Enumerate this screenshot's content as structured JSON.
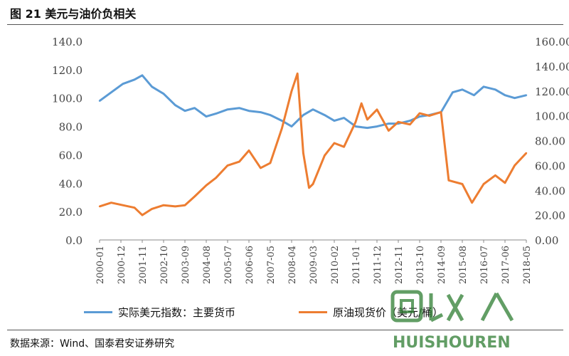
{
  "figure_title": "图 21 美元与油价负相关",
  "source_note": "数据来源：Wind、国泰君安证券研究",
  "watermark": "回收人 HUISHOUREN",
  "colors": {
    "usd": "#5b9bd5",
    "oil": "#ed7d31",
    "axis": "#888888",
    "text": "#444444"
  },
  "chart_data": {
    "type": "line",
    "title": "图 21 美元与油价负相关",
    "x_tick_labels": [
      "2000-01",
      "2000-12",
      "2001-11",
      "2002-10",
      "2003-09",
      "2004-08",
      "2005-07",
      "2006-06",
      "2007-05",
      "2008-04",
      "2009-03",
      "2010-02",
      "2011-01",
      "2011-12",
      "2012-11",
      "2013-10",
      "2014-09",
      "2015-08",
      "2016-07",
      "2017-06",
      "2018-05"
    ],
    "y_left": {
      "range": [
        0,
        140
      ],
      "ticks": [
        "0.0",
        "20.0",
        "40.0",
        "60.0",
        "80.0",
        "100.0",
        "120.0",
        "140.0"
      ]
    },
    "y_right": {
      "range": [
        0,
        160
      ],
      "ticks": [
        "0.00",
        "20.00",
        "40.00",
        "60.00",
        "80.00",
        "100.00",
        "120.00",
        "140.00",
        "160.00"
      ]
    },
    "grid": false,
    "legend_position": "bottom",
    "series": [
      {
        "name": "实际美元指数：主要货币",
        "axis": "left",
        "color": "#5b9bd5",
        "x": [
          "2000-01",
          "2000-07",
          "2001-01",
          "2001-07",
          "2001-11",
          "2002-04",
          "2002-10",
          "2003-04",
          "2003-09",
          "2004-02",
          "2004-08",
          "2005-01",
          "2005-07",
          "2006-01",
          "2006-06",
          "2006-12",
          "2007-05",
          "2007-11",
          "2008-04",
          "2008-10",
          "2009-03",
          "2009-09",
          "2010-02",
          "2010-07",
          "2011-01",
          "2011-07",
          "2011-12",
          "2012-06",
          "2012-11",
          "2013-05",
          "2013-10",
          "2014-03",
          "2014-09",
          "2015-03",
          "2015-08",
          "2016-02",
          "2016-07",
          "2017-01",
          "2017-06",
          "2017-11",
          "2018-05"
        ],
        "values": [
          98,
          104,
          110,
          113,
          116,
          108,
          103,
          95,
          91,
          93,
          87,
          89,
          92,
          93,
          91,
          90,
          88,
          84,
          80,
          88,
          92,
          88,
          84,
          86,
          80,
          79,
          80,
          82,
          82,
          84,
          87,
          88,
          90,
          104,
          106,
          102,
          108,
          106,
          102,
          100,
          102
        ]
      },
      {
        "name": "原油现货价（美元/桶）",
        "axis": "right",
        "color": "#ed7d31",
        "x": [
          "2000-01",
          "2000-07",
          "2001-01",
          "2001-07",
          "2001-11",
          "2002-04",
          "2002-10",
          "2003-04",
          "2003-09",
          "2004-02",
          "2004-08",
          "2005-01",
          "2005-07",
          "2006-01",
          "2006-06",
          "2006-12",
          "2007-05",
          "2007-11",
          "2008-04",
          "2008-07",
          "2008-10",
          "2009-01",
          "2009-03",
          "2009-09",
          "2010-02",
          "2010-07",
          "2011-01",
          "2011-04",
          "2011-07",
          "2011-12",
          "2012-06",
          "2012-11",
          "2013-05",
          "2013-10",
          "2014-03",
          "2014-09",
          "2015-01",
          "2015-08",
          "2016-01",
          "2016-07",
          "2017-01",
          "2017-06",
          "2017-11",
          "2018-05"
        ],
        "values": [
          27,
          30,
          28,
          26,
          20,
          25,
          28,
          27,
          28,
          35,
          44,
          50,
          60,
          63,
          72,
          58,
          62,
          90,
          120,
          134,
          70,
          42,
          45,
          68,
          78,
          75,
          95,
          110,
          97,
          105,
          88,
          95,
          93,
          102,
          100,
          103,
          48,
          45,
          30,
          45,
          52,
          46,
          60,
          70
        ]
      }
    ]
  },
  "legend": [
    {
      "label": "实际美元指数：主要货币",
      "color": "#5b9bd5"
    },
    {
      "label": "原油现货价（美元/桶）",
      "color": "#ed7d31"
    }
  ]
}
